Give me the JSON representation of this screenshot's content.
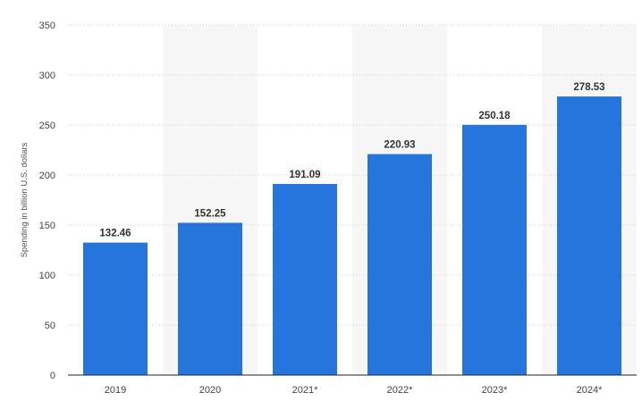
{
  "chart_data": {
    "type": "bar",
    "categories": [
      "2019",
      "2020",
      "2021*",
      "2022*",
      "2023*",
      "2024*"
    ],
    "values": [
      132.46,
      152.25,
      191.09,
      220.93,
      250.18,
      278.53
    ],
    "value_labels": [
      "132.46",
      "152.25",
      "191.09",
      "220.93",
      "250.18",
      "278.53"
    ],
    "title": "",
    "xlabel": "",
    "ylabel": "Spending in billion U.S. dollars",
    "ylim": [
      0,
      350
    ],
    "yticks": [
      0,
      50,
      100,
      150,
      200,
      250,
      300,
      350
    ],
    "ytick_labels": [
      "0",
      "50",
      "100",
      "150",
      "200",
      "250",
      "300",
      "350"
    ],
    "grid": true,
    "legend": "none",
    "colors": {
      "bar": "#2675dc",
      "alt_band": "#f7f7f7",
      "grid": "#d9d9d9"
    }
  }
}
